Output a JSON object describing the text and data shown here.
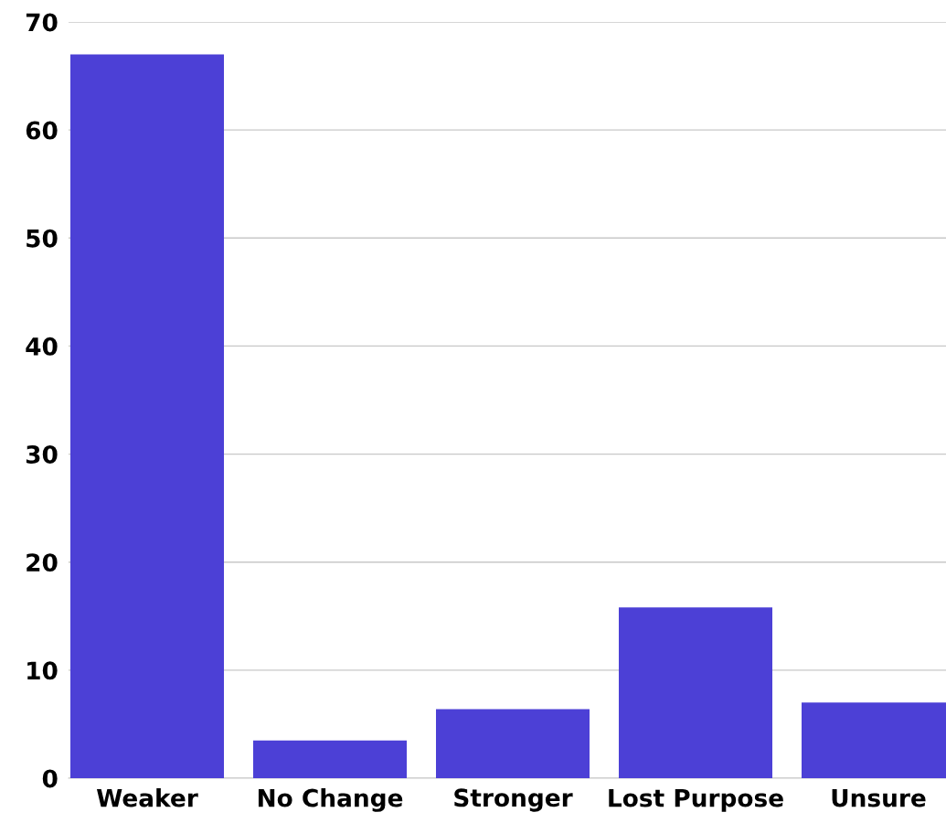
{
  "chart_data": {
    "type": "bar",
    "categories": [
      "Weaker",
      "No Change",
      "Stronger",
      "Lost Purpose",
      "Unsure"
    ],
    "values": [
      67.0,
      3.5,
      6.4,
      15.8,
      7.0
    ],
    "color": "#4c40d6",
    "ylim": [
      0,
      70
    ],
    "yticks": [
      0,
      10,
      20,
      30,
      40,
      50,
      60,
      70
    ],
    "grid": "y"
  }
}
